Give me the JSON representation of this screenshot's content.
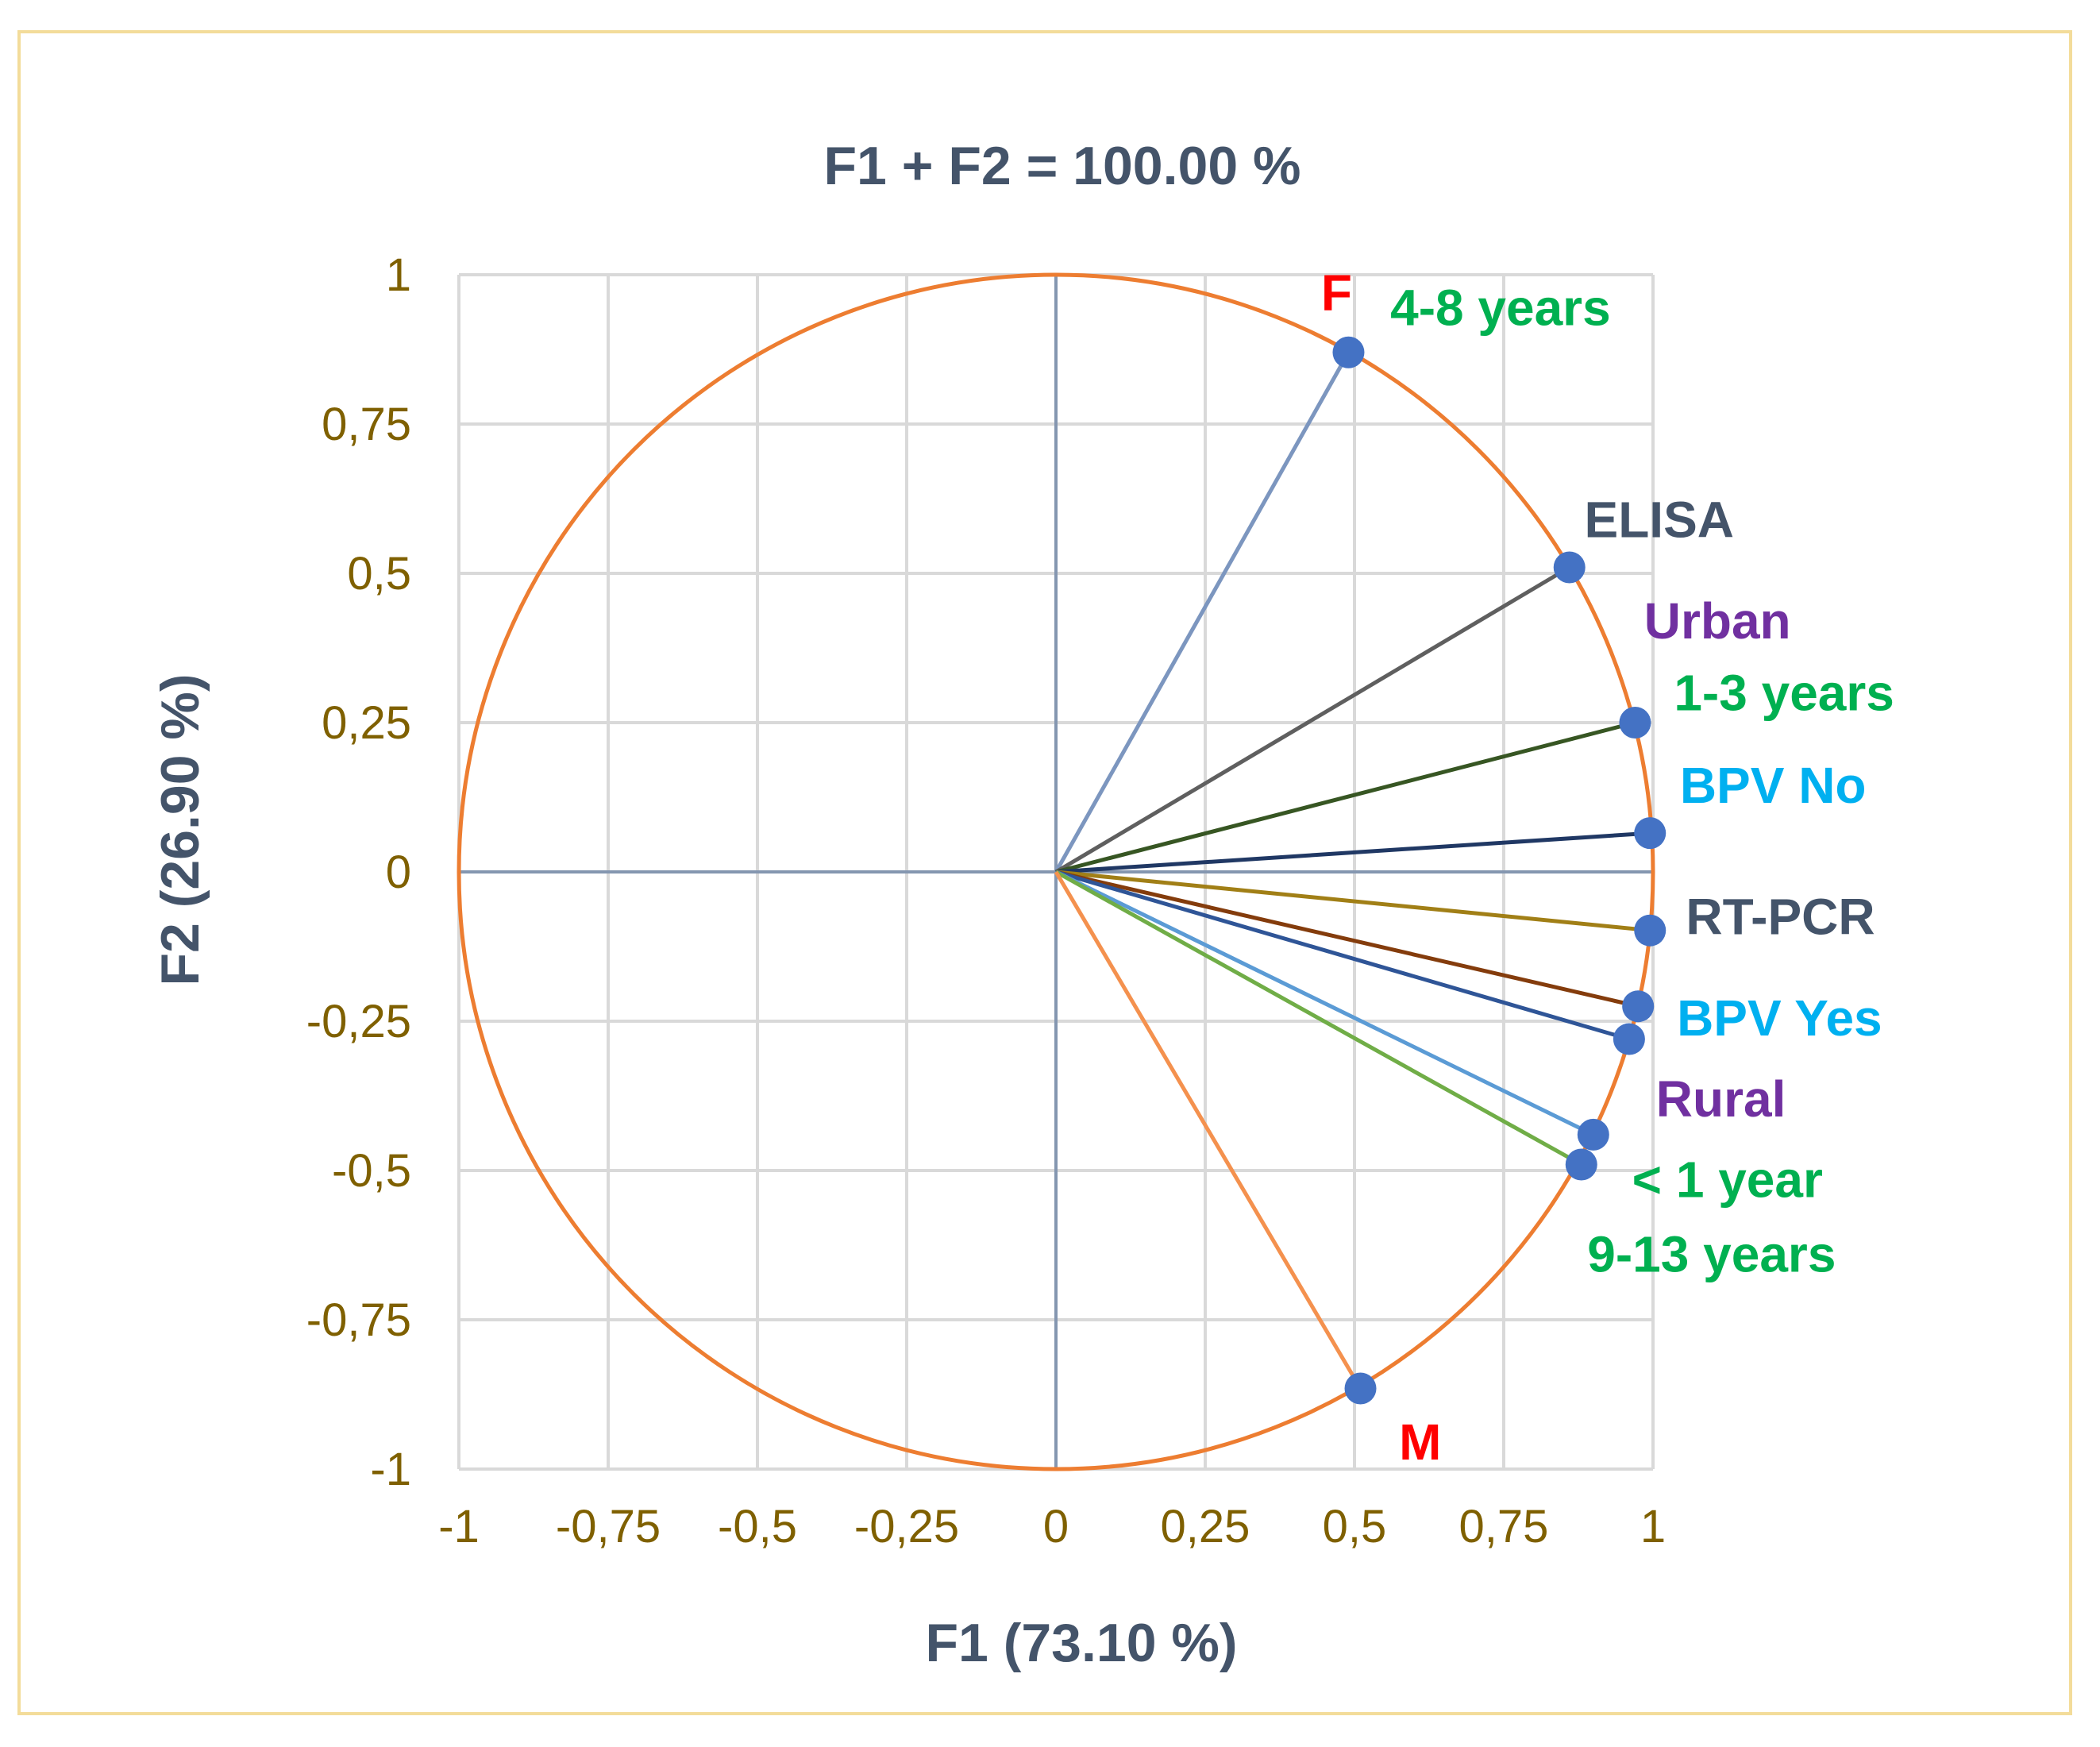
{
  "chart_data": {
    "type": "scatter",
    "subtype": "correlation-circle",
    "title": "F1 + F2 = 100.00 %",
    "xlabel": "F1 (73.10 %)",
    "ylabel": "F2 (26.90 %)",
    "xlim": [
      -1,
      1
    ],
    "ylim": [
      -1,
      1
    ],
    "x_ticks": [
      "-1",
      "-0,75",
      "-0,5",
      "-0,25",
      "0",
      "0,25",
      "0,5",
      "0,75",
      "1"
    ],
    "y_ticks": [
      "1",
      "0,75",
      "0,5",
      "0,25",
      "0",
      "-0,25",
      "-0,5",
      "-0,75",
      "-1"
    ],
    "grid": true,
    "circle_color": "#ed7d31",
    "point_color": "#4472c4",
    "title_color": "#44546a",
    "tick_color": "#7f6000",
    "vectors": [
      {
        "x": 0.49,
        "y": 0.87,
        "color": "#7c96bf"
      },
      {
        "x": 0.86,
        "y": 0.51,
        "color": "#5f5f5f"
      },
      {
        "x": 0.97,
        "y": 0.25,
        "color": "#375623"
      },
      {
        "x": 0.995,
        "y": 0.065,
        "color": "#203864"
      },
      {
        "x": 0.995,
        "y": -0.098,
        "color": "#a17f16"
      },
      {
        "x": 0.975,
        "y": -0.225,
        "color": "#843c0c"
      },
      {
        "x": 0.96,
        "y": -0.28,
        "color": "#2f5597"
      },
      {
        "x": 0.9,
        "y": -0.44,
        "color": "#5b9bd5"
      },
      {
        "x": 0.88,
        "y": -0.49,
        "color": "#70ad47"
      },
      {
        "x": 0.51,
        "y": -0.865,
        "color": "#f4914e"
      }
    ],
    "labels": [
      {
        "text": "F",
        "x": 0.47,
        "y": 0.97,
        "color": "#ff0000",
        "anchor": "middle"
      },
      {
        "text": "4-8 years",
        "x": 0.56,
        "y": 0.945,
        "color": "#00b050",
        "anchor": "start"
      },
      {
        "text": "ELISA",
        "x": 0.885,
        "y": 0.59,
        "color": "#44546a",
        "anchor": "start"
      },
      {
        "text": "Urban",
        "x": 0.985,
        "y": 0.42,
        "color": "#7030a0",
        "anchor": "start"
      },
      {
        "text": "1-3 years",
        "x": 1.035,
        "y": 0.3,
        "color": "#00b050",
        "anchor": "start"
      },
      {
        "text": "BPV No",
        "x": 1.045,
        "y": 0.145,
        "color": "#00b0f0",
        "anchor": "start"
      },
      {
        "text": "RT-PCR",
        "x": 1.055,
        "y": -0.075,
        "color": "#44546a",
        "anchor": "start"
      },
      {
        "text": "BPV Yes",
        "x": 1.04,
        "y": -0.245,
        "color": "#00b0f0",
        "anchor": "start"
      },
      {
        "text": "Rural",
        "x": 1.005,
        "y": -0.38,
        "color": "#7030a0",
        "anchor": "start"
      },
      {
        "text": "< 1 year",
        "x": 0.965,
        "y": -0.515,
        "color": "#00b050",
        "anchor": "start"
      },
      {
        "text": "9-13 years",
        "x": 0.89,
        "y": -0.64,
        "color": "#00b050",
        "anchor": "start"
      },
      {
        "text": "M",
        "x": 0.61,
        "y": -0.955,
        "color": "#ff0000",
        "anchor": "middle"
      }
    ]
  }
}
